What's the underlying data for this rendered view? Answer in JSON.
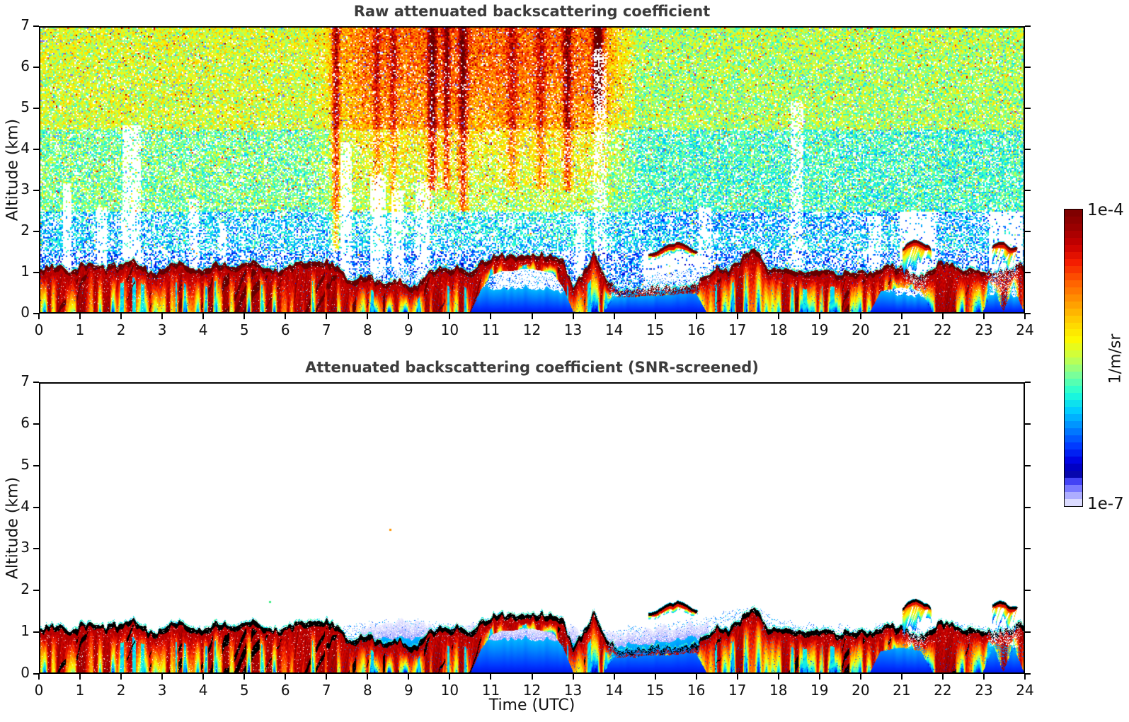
{
  "chart_data": {
    "type": "heatmap",
    "panels": [
      {
        "title": "Raw attenuated backscattering coefficient",
        "screened": false,
        "x": {
          "label": "",
          "range": [
            0,
            24
          ],
          "ticks": [
            0,
            1,
            2,
            3,
            4,
            5,
            6,
            7,
            8,
            9,
            10,
            11,
            12,
            13,
            14,
            15,
            16,
            17,
            18,
            19,
            20,
            21,
            22,
            23,
            24
          ]
        },
        "y": {
          "label": "Altitude (km)",
          "range": [
            0,
            7
          ],
          "ticks": [
            0,
            1,
            2,
            3,
            4,
            5,
            6,
            7
          ]
        }
      },
      {
        "title": "Attenuated backscattering coefficient (SNR-screened)",
        "screened": true,
        "x": {
          "label": "Time (UTC)",
          "range": [
            0,
            24
          ],
          "ticks": [
            0,
            1,
            2,
            3,
            4,
            5,
            6,
            7,
            8,
            9,
            10,
            11,
            12,
            13,
            14,
            15,
            16,
            17,
            18,
            19,
            20,
            21,
            22,
            23,
            24
          ]
        },
        "y": {
          "label": "Altitude (km)",
          "range": [
            0,
            7
          ],
          "ticks": [
            0,
            1,
            2,
            3,
            4,
            5,
            6,
            7
          ]
        }
      }
    ],
    "colorbar": {
      "min": 1e-07,
      "max": 0.0001,
      "scale": "log",
      "unit": "1/m/sr",
      "max_label": "1e-4",
      "min_label": "1e-7",
      "over_color_raw": "#650000",
      "over_color_screened": "#000000",
      "stops": [
        {
          "p": 0.0,
          "c": "#790000"
        },
        {
          "p": 0.06,
          "c": "#9a0000"
        },
        {
          "p": 0.12,
          "c": "#c80000"
        },
        {
          "p": 0.18,
          "c": "#f51e00"
        },
        {
          "p": 0.25,
          "c": "#ff6400"
        },
        {
          "p": 0.32,
          "c": "#ffa000"
        },
        {
          "p": 0.38,
          "c": "#ffd200"
        },
        {
          "p": 0.44,
          "c": "#fcf800"
        },
        {
          "p": 0.5,
          "c": "#c8ff46"
        },
        {
          "p": 0.56,
          "c": "#78ff9b"
        },
        {
          "p": 0.62,
          "c": "#1effd7"
        },
        {
          "p": 0.68,
          "c": "#00ccff"
        },
        {
          "p": 0.74,
          "c": "#0084ff"
        },
        {
          "p": 0.8,
          "c": "#0038ff"
        },
        {
          "p": 0.85,
          "c": "#0000e1"
        },
        {
          "p": 0.89,
          "c": "#0000a5"
        },
        {
          "p": 0.92,
          "c": "#4b4bff"
        },
        {
          "p": 0.95,
          "c": "#9090ff"
        },
        {
          "p": 0.98,
          "c": "#ccccff"
        },
        {
          "p": 1.0,
          "c": "#f2f2ff"
        }
      ]
    },
    "sampling": {
      "bl_dt_hours": 0.25,
      "blue_dt_hours": 0.5
    },
    "bl_top_km": [
      1.05,
      1.1,
      1.15,
      0.95,
      1.2,
      1.12,
      1.08,
      1.15,
      1.18,
      1.25,
      1.1,
      0.92,
      1.02,
      1.22,
      1.18,
      1.1,
      1.05,
      1.22,
      1.18,
      1.1,
      1.18,
      1.22,
      1.1,
      1.02,
      1.1,
      1.18,
      1.22,
      1.18,
      1.28,
      1.1,
      0.78,
      0.85,
      0.9,
      0.72,
      0.66,
      0.8,
      0.66,
      0.72,
      1.0,
      1.1,
      1.0,
      1.15,
      0.92,
      1.2,
      1.35,
      1.4,
      1.4,
      1.42,
      1.45,
      1.42,
      1.4,
      1.3,
      0.55,
      1.0,
      1.45,
      0.9,
      0.62,
      0.55,
      0.55,
      0.58,
      0.6,
      0.6,
      0.62,
      0.65,
      0.7,
      0.9,
      1.1,
      1.0,
      1.2,
      1.45,
      1.55,
      1.12,
      1.0,
      1.05,
      1.0,
      0.95,
      1.05,
      1.0,
      0.95,
      1.0,
      0.95,
      1.0,
      1.1,
      1.15,
      1.1,
      0.9,
      0.88,
      1.0,
      1.25,
      1.2,
      1.0,
      1.05,
      1.0,
      0.95,
      1.0,
      1.1,
      1.2
    ],
    "bl_base_km": [
      0,
      0,
      0,
      0,
      0,
      0,
      0,
      0,
      0,
      0,
      0,
      0,
      0,
      0,
      0,
      0,
      0,
      0,
      0,
      0,
      0,
      0,
      0,
      0,
      0,
      0,
      0,
      0,
      0,
      0,
      0,
      0,
      0,
      0,
      0,
      0,
      0,
      0,
      0,
      0,
      0,
      0,
      0,
      0.55,
      0.9,
      1.0,
      1.0,
      1.05,
      1.05,
      1.0,
      0.95,
      0.6,
      0,
      0,
      0,
      0,
      0.35,
      0.35,
      0.35,
      0.4,
      0.4,
      0.4,
      0.42,
      0.45,
      0.45,
      0,
      0,
      0,
      0,
      0,
      0,
      0,
      0,
      0,
      0,
      0,
      0,
      0,
      0,
      0,
      0,
      0,
      0.5,
      0.55,
      0.6,
      0.55,
      0.5,
      0,
      0,
      0,
      0,
      0,
      0,
      0.6,
      0,
      0.6,
      0
    ],
    "bl_intensity": [
      1,
      1,
      1,
      1,
      1,
      1,
      1,
      1,
      1,
      1,
      1,
      1,
      1,
      1,
      1,
      1,
      1,
      1,
      1,
      1,
      1,
      1,
      1,
      1,
      1,
      1,
      1,
      1,
      1,
      1,
      1,
      1,
      1,
      1,
      1,
      1,
      1,
      1,
      1,
      1,
      1,
      1,
      1,
      1,
      1,
      1,
      1,
      1,
      1,
      1,
      1,
      1,
      1,
      1,
      1,
      1,
      0.35,
      0.35,
      0.35,
      0.35,
      0.35,
      0.35,
      0.35,
      0.35,
      0.6,
      1,
      1,
      1,
      1,
      1,
      1,
      1,
      1,
      1,
      1,
      1,
      1,
      1,
      1,
      1,
      1,
      1,
      0.85,
      0.85,
      0.8,
      0.45,
      0.45,
      0.9,
      1,
      1,
      1,
      1,
      1,
      0.3,
      0.5,
      0.35,
      0.9
    ],
    "blue_fill_top_km": [
      0,
      0,
      0,
      0,
      0,
      0,
      0,
      0,
      0,
      0,
      0,
      0,
      0,
      0,
      0,
      0.5,
      0.55,
      0.6,
      0.6,
      0.55,
      0.5,
      0.55,
      0.6,
      0.6,
      0.6,
      0.55,
      0.45,
      0.4,
      0.4,
      0.45,
      0.5,
      0.55,
      0.6,
      0.7,
      0.85,
      0.9,
      0.6,
      0.5,
      0.45,
      0.45,
      0.4,
      0.5,
      0.45,
      0.4,
      0.45,
      0.5,
      0.45,
      0.4,
      0.45
    ],
    "precip_columns": [
      [
        0.55,
        0.1,
        0.9
      ],
      [
        0.95,
        0.08,
        0.8
      ],
      [
        1.6,
        0.06,
        0.6
      ],
      [
        2.2,
        0.16,
        1.0
      ],
      [
        2.65,
        0.06,
        0.6
      ],
      [
        3.3,
        0.07,
        0.7
      ],
      [
        4.15,
        0.07,
        0.8
      ],
      [
        4.5,
        0.05,
        0.6
      ],
      [
        4.85,
        0.07,
        0.8
      ],
      [
        5.3,
        0.05,
        0.6
      ],
      [
        5.55,
        0.07,
        0.8
      ],
      [
        6.1,
        0.06,
        0.7
      ],
      [
        6.55,
        0.06,
        0.7
      ],
      [
        6.9,
        0.05,
        0.6
      ],
      [
        7.15,
        0.09,
        1.0
      ],
      [
        8.65,
        0.05,
        0.5
      ],
      [
        9.6,
        0.08,
        0.9
      ],
      [
        9.95,
        0.06,
        0.7
      ],
      [
        10.3,
        0.08,
        0.8
      ],
      [
        12.85,
        0.1,
        0.9
      ],
      [
        13.35,
        0.05,
        0.5
      ],
      [
        16.5,
        0.09,
        0.9
      ],
      [
        17.1,
        0.05,
        0.5
      ],
      [
        17.8,
        0.05,
        0.6
      ],
      [
        18.1,
        0.05,
        0.6
      ],
      [
        18.45,
        0.05,
        0.7
      ],
      [
        19.1,
        0.04,
        0.5
      ],
      [
        21.9,
        0.06,
        0.8
      ],
      [
        22.2,
        0.07,
        0.8
      ],
      [
        23.5,
        0.06,
        0.8
      ],
      [
        23.9,
        0.06,
        0.7
      ]
    ],
    "elevated_clouds": [
      {
        "t0": 14.85,
        "t1": 16.05,
        "z_km": 1.52,
        "amp_km": 0.1,
        "thick_km": 0.14,
        "fallstreaks": false
      },
      {
        "t0": 21.05,
        "t1": 21.75,
        "z_km": 1.62,
        "amp_km": 0.08,
        "thick_km": 0.16,
        "fallstreaks": true
      },
      {
        "t0": 23.25,
        "t1": 23.85,
        "z_km": 1.58,
        "amp_km": 0.08,
        "thick_km": 0.15,
        "fallstreaks": true
      }
    ],
    "noise_gaps": [
      [
        0.55,
        0.75,
        3.2,
        0.85
      ],
      [
        1.35,
        1.6,
        2.6,
        0.8
      ],
      [
        2.0,
        2.45,
        4.6,
        0.75
      ],
      [
        3.6,
        3.85,
        2.8,
        0.7
      ],
      [
        4.35,
        4.55,
        2.2,
        0.6
      ],
      [
        7.3,
        7.6,
        4.2,
        0.8
      ],
      [
        8.05,
        8.4,
        3.4,
        0.8
      ],
      [
        8.55,
        8.85,
        3.0,
        0.75
      ],
      [
        9.15,
        9.5,
        3.2,
        0.7
      ],
      [
        11.05,
        12.7,
        1.35,
        0.9
      ],
      [
        13.05,
        13.3,
        2.4,
        0.7
      ],
      [
        13.5,
        13.8,
        6.5,
        0.55
      ],
      [
        14.7,
        16.1,
        1.5,
        0.85
      ],
      [
        16.05,
        16.35,
        2.6,
        0.7
      ],
      [
        18.3,
        18.6,
        5.2,
        0.6
      ],
      [
        20.2,
        20.5,
        2.4,
        0.7
      ],
      [
        20.95,
        21.85,
        2.5,
        0.85
      ],
      [
        23.15,
        23.95,
        2.5,
        0.85
      ]
    ],
    "noise_red_streaks": [
      [
        7.2,
        0.07,
        0.3,
        1.5
      ],
      [
        8.2,
        0.06,
        0.15,
        2.5
      ],
      [
        8.6,
        0.06,
        0.15,
        2.5
      ],
      [
        9.55,
        0.08,
        0.3,
        3.0
      ],
      [
        9.9,
        0.06,
        0.25,
        3.0
      ],
      [
        10.3,
        0.08,
        0.28,
        2.5
      ],
      [
        11.5,
        0.08,
        0.15,
        3.0
      ],
      [
        12.2,
        0.08,
        0.15,
        3.0
      ],
      [
        12.85,
        0.07,
        0.25,
        3.0
      ],
      [
        13.6,
        0.08,
        0.45,
        5.0
      ]
    ],
    "stray_dots": [
      {
        "t": 8.55,
        "z_km": 3.45,
        "color": "#ff9500"
      },
      {
        "t": 5.6,
        "z_km": 1.7,
        "color": "#44ee88"
      }
    ]
  }
}
